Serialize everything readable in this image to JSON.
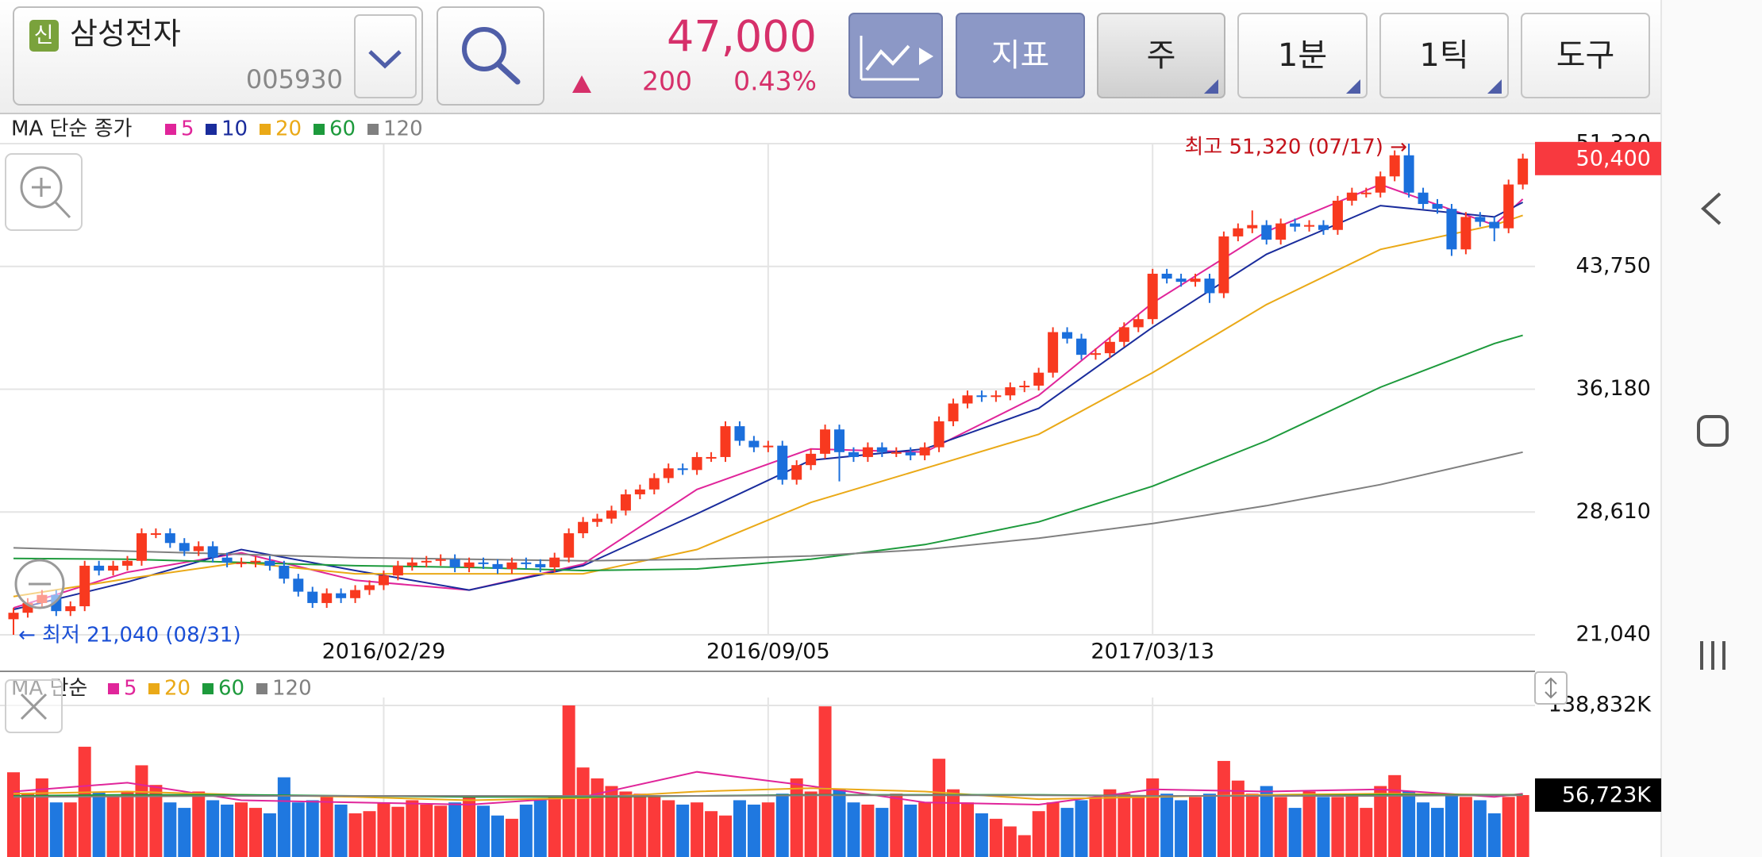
{
  "header": {
    "badge": "신",
    "name": "삼성전자",
    "code": "005930",
    "price": "47,000",
    "change": "200",
    "change_pct": "0.43%"
  },
  "toolbar": {
    "buttons": [
      "지표",
      "주",
      "1분",
      "1틱",
      "도구"
    ]
  },
  "chart_data": [
    {
      "type": "candlestick",
      "title": "MA 단순 종가",
      "up_color": "#f8391f",
      "down_color": "#1b6fdc",
      "open": [
        22000,
        22400,
        23000,
        23500,
        22500,
        22800,
        25300,
        25000,
        25300,
        25600,
        27300,
        27300,
        26700,
        26200,
        26500,
        25800,
        25500,
        25500,
        25600,
        25300,
        24500,
        23700,
        23000,
        23600,
        23300,
        23800,
        24100,
        24700,
        25300,
        25500,
        25600,
        25700,
        25200,
        25500,
        25400,
        25100,
        25500,
        25400,
        25200,
        25800,
        27300,
        28000,
        28200,
        28700,
        29700,
        30000,
        30700,
        31300,
        31200,
        32000,
        32000,
        33900,
        33000,
        32600,
        32700,
        30600,
        31500,
        32200,
        33700,
        32300,
        32000,
        32600,
        32300,
        32300,
        32100,
        32600,
        34200,
        35300,
        35800,
        35700,
        35800,
        36300,
        36400,
        37200,
        39700,
        39300,
        38300,
        38400,
        39100,
        40000,
        40500,
        43300,
        43000,
        42800,
        43000,
        42100,
        45600,
        46100,
        46300,
        45400,
        46400,
        46200,
        46300,
        46000,
        47800,
        48300,
        48300,
        49300,
        50600,
        48300,
        47600,
        47300,
        44800,
        46800,
        46500,
        46100,
        48800
      ],
      "high": [
        22700,
        23300,
        23800,
        23800,
        23100,
        25600,
        25600,
        25600,
        25900,
        27600,
        27600,
        27600,
        27000,
        26800,
        26800,
        26100,
        25800,
        25900,
        25900,
        25600,
        24800,
        24000,
        23900,
        23900,
        24100,
        24400,
        25000,
        25600,
        25800,
        25900,
        26000,
        26000,
        25800,
        25800,
        25700,
        25800,
        25800,
        25700,
        26100,
        27600,
        28300,
        28500,
        29000,
        30000,
        30300,
        31000,
        31600,
        31600,
        32300,
        32300,
        34200,
        34200,
        33300,
        33000,
        33000,
        31800,
        32500,
        34000,
        34000,
        32600,
        32900,
        32900,
        32600,
        32600,
        32900,
        34500,
        35600,
        36100,
        36100,
        36100,
        36600,
        36700,
        37500,
        40000,
        40000,
        39600,
        38700,
        39400,
        40300,
        40800,
        43600,
        43600,
        43300,
        43300,
        43300,
        45900,
        46400,
        47200,
        46600,
        46700,
        46700,
        46600,
        46600,
        48100,
        48600,
        48600,
        49600,
        50900,
        51320,
        48600,
        47900,
        47600,
        47100,
        47100,
        46800,
        49100,
        50700
      ],
      "low": [
        21040,
        22100,
        22700,
        22200,
        22200,
        22500,
        24700,
        24700,
        25000,
        25300,
        27000,
        26400,
        25900,
        25900,
        25500,
        25200,
        25200,
        25200,
        25000,
        24200,
        23400,
        22700,
        22700,
        23000,
        23000,
        23500,
        23800,
        24400,
        25000,
        25200,
        25300,
        24900,
        24900,
        25100,
        24800,
        24800,
        25100,
        24900,
        24900,
        25500,
        27000,
        27700,
        27900,
        28400,
        29400,
        29700,
        30400,
        30900,
        30900,
        31700,
        31700,
        32700,
        32300,
        32300,
        30300,
        30300,
        31200,
        31900,
        30500,
        31700,
        31700,
        32000,
        32000,
        31800,
        31800,
        32300,
        33900,
        35000,
        35400,
        35400,
        35500,
        36000,
        36100,
        36900,
        39000,
        38000,
        38000,
        38100,
        38800,
        39700,
        40200,
        42700,
        42500,
        42500,
        41500,
        41800,
        45300,
        45800,
        45100,
        45100,
        45900,
        45900,
        45700,
        45700,
        47500,
        48000,
        48000,
        49000,
        48000,
        47300,
        47000,
        44400,
        44500,
        46200,
        45300,
        45800,
        48500
      ],
      "close": [
        22400,
        23000,
        23500,
        22500,
        22800,
        25300,
        25000,
        25300,
        25600,
        27300,
        27300,
        26700,
        26200,
        26500,
        25800,
        25500,
        25500,
        25600,
        25300,
        24500,
        23700,
        23000,
        23600,
        23300,
        23800,
        24100,
        24700,
        25300,
        25500,
        25600,
        25700,
        25200,
        25500,
        25400,
        25100,
        25500,
        25400,
        25200,
        25800,
        27300,
        28000,
        28200,
        28700,
        29700,
        30000,
        30700,
        31300,
        31200,
        32000,
        32000,
        33900,
        33000,
        32600,
        32700,
        30600,
        31500,
        32200,
        33700,
        32300,
        32000,
        32600,
        32300,
        32300,
        32100,
        32600,
        34200,
        35300,
        35800,
        35700,
        35800,
        36300,
        36400,
        37200,
        39700,
        39300,
        38300,
        38400,
        39100,
        40000,
        40500,
        43300,
        43000,
        42800,
        43000,
        42100,
        45600,
        46100,
        46300,
        45400,
        46400,
        46200,
        46300,
        46000,
        47800,
        48300,
        48300,
        49300,
        50600,
        48300,
        47600,
        47300,
        44800,
        46800,
        46500,
        46100,
        48800,
        50400
      ],
      "xticks": [
        {
          "value": 26,
          "label": "2016/02/29"
        },
        {
          "value": 53,
          "label": "2016/09/05"
        },
        {
          "value": 80,
          "label": "2017/03/13"
        }
      ],
      "ylim": [
        21040,
        51320
      ],
      "yticks": [
        {
          "value": 21040,
          "label": "21,040"
        },
        {
          "value": 28610,
          "label": "28,610"
        },
        {
          "value": 36180,
          "label": "36,180"
        },
        {
          "value": 43750,
          "label": "43,750"
        },
        {
          "value": 51320,
          "label": "51,320"
        }
      ],
      "current_label": "50,400",
      "annotations": [
        {
          "text": "최고 51,320 (07/17) →",
          "color": "#c4121a"
        },
        {
          "text": "← 최저 21,040 (08/31)",
          "color": "#1a4fd6"
        }
      ],
      "ma_x": [
        0,
        8,
        16,
        24,
        32,
        40,
        48,
        56,
        64,
        72,
        80,
        88,
        96,
        104,
        106
      ],
      "ma": [
        {
          "name": "5",
          "color": "#e0259a",
          "values": [
            22700,
            24900,
            26100,
            24400,
            23800,
            25400,
            30000,
            32500,
            32300,
            35800,
            41500,
            45900,
            48800,
            46300,
            47900
          ]
        },
        {
          "name": "10",
          "color": "#1a2c9c",
          "values": [
            22600,
            24300,
            26300,
            25000,
            23800,
            25300,
            28500,
            31800,
            32500,
            35000,
            40000,
            44500,
            47500,
            46800,
            47700
          ]
        },
        {
          "name": "20",
          "color": "#eaa917",
          "values": [
            23400,
            24500,
            25500,
            24800,
            24800,
            24800,
            26300,
            29200,
            31300,
            33400,
            37200,
            41400,
            44800,
            46300,
            46900
          ]
        },
        {
          "name": "60",
          "color": "#1d9a3c",
          "values": [
            25750,
            25700,
            25500,
            25300,
            25200,
            25000,
            25100,
            25700,
            26600,
            28000,
            30200,
            33000,
            36300,
            39000,
            39500
          ]
        },
        {
          "name": "120",
          "color": "#808080",
          "values": [
            26400,
            26200,
            26000,
            25800,
            25700,
            25600,
            25700,
            25900,
            26300,
            27000,
            27900,
            29000,
            30300,
            31900,
            32300
          ]
        }
      ]
    },
    {
      "type": "bar",
      "title": "MA 단순",
      "up_color": "#fb3a3a",
      "down_color": "#1f78e0",
      "values": [
        77600,
        58000,
        72000,
        50000,
        50000,
        101000,
        60000,
        55000,
        60000,
        84000,
        66000,
        50000,
        45000,
        60000,
        52000,
        48000,
        50000,
        45000,
        40000,
        73000,
        50000,
        52000,
        55000,
        48000,
        40000,
        42000,
        50000,
        46000,
        52000,
        48000,
        47000,
        50000,
        55000,
        47000,
        38000,
        35000,
        48000,
        52000,
        55000,
        138832,
        82000,
        72000,
        65000,
        60000,
        58000,
        55000,
        52000,
        48000,
        50000,
        42000,
        38000,
        52000,
        48000,
        50000,
        58000,
        72000,
        60000,
        138000,
        62000,
        50000,
        48000,
        45000,
        58000,
        48000,
        50000,
        90000,
        62000,
        50000,
        40000,
        35000,
        28000,
        20000,
        42000,
        50000,
        45000,
        52000,
        55000,
        62000,
        58000,
        55000,
        72000,
        58000,
        52000,
        55000,
        58000,
        88000,
        70000,
        58000,
        65000,
        55000,
        45000,
        60000,
        55000,
        55000,
        58000,
        45000,
        65000,
        75000,
        60000,
        50000,
        45000,
        58000,
        55000,
        52000,
        40000,
        55000,
        56723
      ],
      "ylim": [
        0,
        138832
      ],
      "yticks": [
        {
          "value": 138832,
          "label": "138,832K"
        }
      ],
      "current_label": "56,723K",
      "ma_x": [
        0,
        8,
        16,
        24,
        32,
        40,
        48,
        56,
        64,
        72,
        80,
        88,
        96,
        104,
        106
      ],
      "ma": [
        {
          "name": "5",
          "color": "#e0259a",
          "values": [
            60000,
            68000,
            52000,
            50000,
            48000,
            55000,
            78000,
            65000,
            50000,
            48000,
            62000,
            60000,
            62000,
            55000,
            58000
          ]
        },
        {
          "name": "20",
          "color": "#eaa917",
          "values": [
            58000,
            60000,
            57000,
            55000,
            52000,
            54000,
            60000,
            63000,
            60000,
            53000,
            55000,
            57000,
            58000,
            57000,
            57000
          ]
        },
        {
          "name": "60",
          "color": "#1d9a3c",
          "values": [
            56000,
            57000,
            57000,
            56000,
            55000,
            55000,
            56000,
            57000,
            57000,
            57000,
            56000,
            56000,
            57000,
            57000,
            57000
          ]
        },
        {
          "name": "120",
          "color": "#808080",
          "values": [
            55000,
            55500,
            56000,
            56000,
            56000,
            56000,
            56000,
            56500,
            56500,
            56500,
            56000,
            56000,
            56000,
            56500,
            56500
          ]
        }
      ]
    }
  ]
}
